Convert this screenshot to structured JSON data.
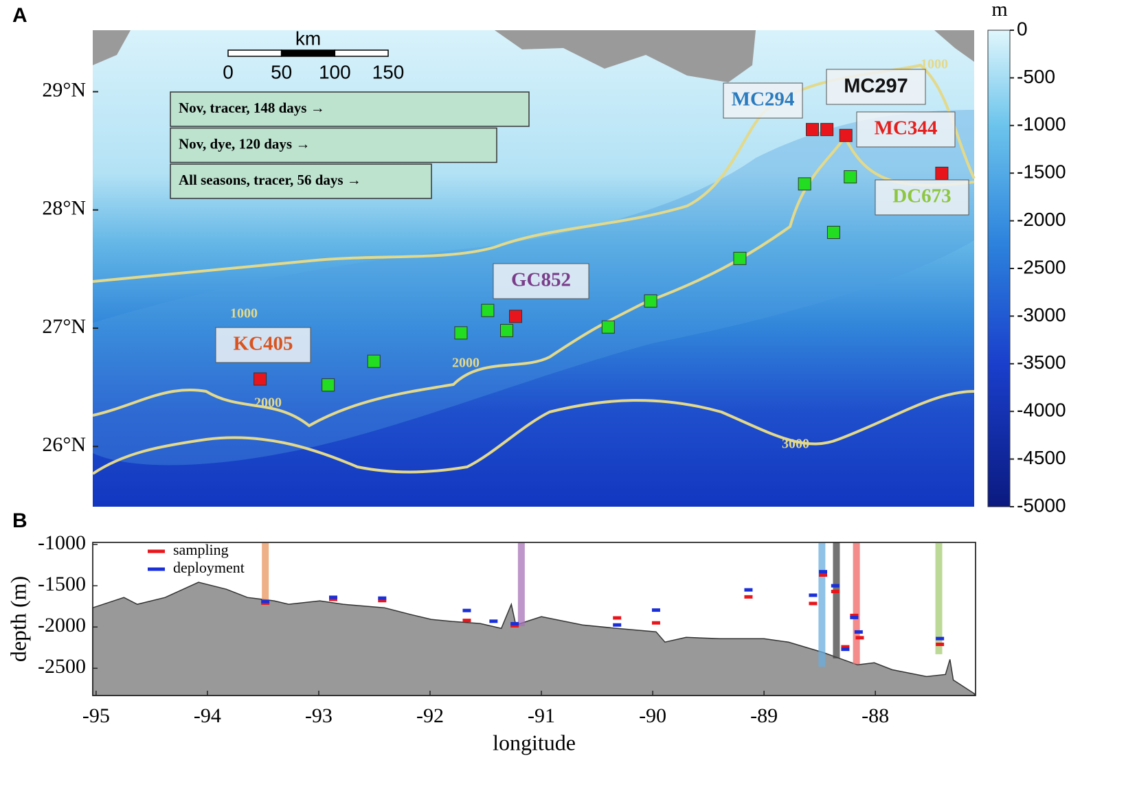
{
  "chart_data": [
    {
      "type": "map",
      "title": "A",
      "xlim": [
        -95.03,
        -87.13
      ],
      "ylim": [
        25.49,
        29.52
      ],
      "yticks": [
        {
          "value": 26,
          "label": "26°N"
        },
        {
          "value": 27,
          "label": "27°N"
        },
        {
          "value": 28,
          "label": "28°N"
        },
        {
          "value": 29,
          "label": "29°N"
        }
      ],
      "colorbar": {
        "label": "m",
        "lim": [
          -5000,
          0
        ],
        "ticks": [
          0,
          -500,
          -1000,
          -1500,
          -2000,
          -2500,
          -3000,
          -3500,
          -4000,
          -4500,
          -5000
        ]
      },
      "scale_bar": {
        "label": "km",
        "ticks": [
          0,
          50,
          100,
          150
        ]
      },
      "routes": [
        "Nov, tracer, 148 days  →",
        "Nov, dye, 120 days  →",
        "All seasons, tracer, 56 days  →"
      ],
      "sites": [
        {
          "label": "MC294",
          "color": "#2a7bc0"
        },
        {
          "label": "MC297",
          "color": "#111111"
        },
        {
          "label": "MC344",
          "color": "#e3201e"
        },
        {
          "label": "DC673",
          "color": "#8dc63f"
        },
        {
          "label": "GC852",
          "color": "#7a3d8a"
        },
        {
          "label": "KC405",
          "color": "#d9541e"
        }
      ],
      "contour_labels": [
        "1000",
        "1000",
        "2000",
        "2000",
        "3000"
      ],
      "points": [
        {
          "color": "#e8161c",
          "x": [
            -93.53,
            -91.24,
            -88.58,
            -88.45,
            -88.28,
            -87.42
          ],
          "y": [
            26.57,
            27.1,
            28.68,
            28.68,
            28.63,
            28.31
          ]
        },
        {
          "color": "#22dd22",
          "x": [
            -88.65,
            -88.24,
            -88.39,
            -89.23,
            -90.03,
            -90.41,
            -91.49,
            -91.32,
            -91.73,
            -92.51,
            -92.92
          ],
          "y": [
            28.22,
            28.28,
            27.81,
            27.59,
            27.23,
            27.01,
            27.15,
            26.98,
            26.96,
            26.72,
            26.52
          ]
        }
      ]
    },
    {
      "type": "area",
      "title": "B",
      "xlabel": "longitude",
      "ylabel": "depth (m)",
      "color": "#999999",
      "xlim": [
        -95.03,
        -87.1
      ],
      "ylim": [
        -2830,
        -975
      ],
      "xticks": [
        -95,
        -94,
        -93,
        -92,
        -91,
        -90,
        -89,
        -88
      ],
      "yticks": [
        -1000,
        -1500,
        -2000,
        -2500
      ],
      "x": [
        -95.03,
        -94.75,
        -94.63,
        -94.38,
        -94.08,
        -93.83,
        -93.64,
        -93.4,
        -93.27,
        -92.99,
        -92.78,
        -92.41,
        -92.17,
        -91.99,
        -91.8,
        -91.55,
        -91.36,
        -91.27,
        -91.23,
        -91.0,
        -90.63,
        -90.32,
        -89.97,
        -89.89,
        -89.7,
        -89.39,
        -89.0,
        -88.78,
        -88.47,
        -88.16,
        -88.01,
        -87.85,
        -87.54,
        -87.37,
        -87.33,
        -87.3,
        -87.11
      ],
      "values": [
        -1767,
        -1642,
        -1725,
        -1642,
        -1458,
        -1542,
        -1642,
        -1683,
        -1725,
        -1683,
        -1725,
        -1767,
        -1850,
        -1908,
        -1933,
        -1958,
        -2017,
        -1725,
        -1975,
        -1875,
        -1975,
        -2017,
        -2058,
        -2183,
        -2125,
        -2142,
        -2142,
        -2183,
        -2308,
        -2458,
        -2433,
        -2517,
        -2600,
        -2575,
        -2392,
        -2642,
        -2808
      ],
      "bands": [
        {
          "x": -93.48,
          "y": -1700,
          "color": "#e8955e"
        },
        {
          "x": -91.18,
          "y": -1990,
          "color": "#a873b8"
        },
        {
          "x": -88.48,
          "y": -2480,
          "color": "#6aaede"
        },
        {
          "x": -88.35,
          "y": -2380,
          "color": "#444444"
        },
        {
          "x": -88.17,
          "y": -2450,
          "color": "#f06565"
        },
        {
          "x": -87.43,
          "y": -2330,
          "color": "#a6cc74"
        }
      ],
      "legend": "upper left",
      "series": [
        {
          "name": "sampling",
          "color": "#e8161c",
          "x": [
            -93.48,
            -92.87,
            -92.43,
            -91.67,
            -91.24,
            -90.32,
            -89.97,
            -89.14,
            -88.56,
            -88.47,
            -88.36,
            -88.19,
            -88.27,
            -88.14,
            -87.42
          ],
          "values": [
            -1710,
            -1665,
            -1680,
            -1920,
            -1985,
            -1890,
            -1950,
            -1635,
            -1715,
            -1370,
            -1570,
            -1860,
            -2240,
            -2130,
            -2210
          ]
        },
        {
          "name": "deployment",
          "color": "#1a2fd8",
          "x": [
            -93.48,
            -92.87,
            -92.43,
            -91.67,
            -91.43,
            -91.24,
            -90.32,
            -89.97,
            -89.14,
            -88.56,
            -88.47,
            -88.36,
            -88.19,
            -88.27,
            -88.15,
            -87.42
          ],
          "values": [
            -1690,
            -1640,
            -1650,
            -1800,
            -1930,
            -1960,
            -1975,
            -1795,
            -1550,
            -1615,
            -1330,
            -1500,
            -1885,
            -2270,
            -2060,
            -2140
          ]
        }
      ]
    }
  ]
}
